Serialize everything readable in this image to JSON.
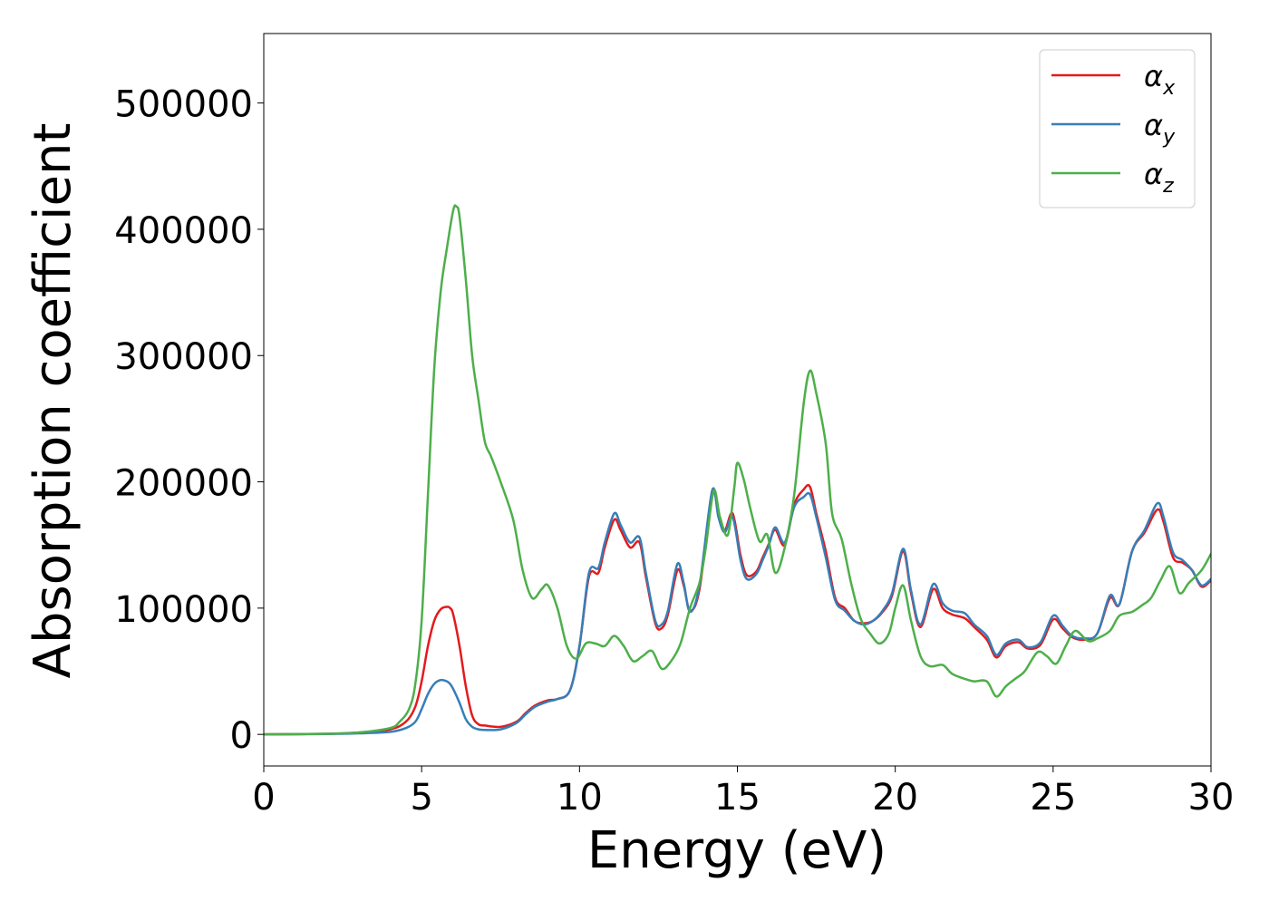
{
  "chart_data": {
    "type": "line",
    "title": "",
    "xlabel": "Energy (eV)",
    "ylabel": "Absorption coefficient",
    "xlim": [
      0,
      30
    ],
    "ylim": [
      -25000,
      555000
    ],
    "xticks": [
      0,
      5,
      10,
      15,
      20,
      25,
      30
    ],
    "xtick_labels": [
      "0",
      "5",
      "10",
      "15",
      "20",
      "25",
      "30"
    ],
    "yticks": [
      0,
      100000,
      200000,
      300000,
      400000,
      500000
    ],
    "ytick_labels": [
      "0",
      "100000",
      "200000",
      "300000",
      "400000",
      "500000"
    ],
    "grid": false,
    "legend_position": "top-right",
    "series": [
      {
        "name": "α_x",
        "legend": {
          "base": "α",
          "sub": "x"
        },
        "color": "#e41a1c",
        "x": [
          0,
          2,
          3,
          4,
          4.5,
          4.8,
          5.0,
          5.2,
          5.4,
          5.6,
          5.8,
          5.9,
          6.0,
          6.2,
          6.4,
          6.6,
          6.8,
          7.0,
          7.5,
          8.0,
          8.3,
          8.6,
          9.0,
          9.3,
          9.7,
          10.0,
          10.3,
          10.6,
          10.8,
          11.1,
          11.3,
          11.6,
          11.9,
          12.1,
          12.4,
          12.6,
          12.8,
          13.1,
          13.3,
          13.5,
          13.8,
          14.2,
          14.4,
          14.6,
          14.85,
          15.1,
          15.3,
          15.6,
          15.8,
          16.0,
          16.2,
          16.5,
          16.8,
          17.1,
          17.3,
          17.5,
          17.8,
          18.1,
          18.4,
          18.7,
          19.0,
          19.3,
          19.6,
          19.9,
          20.25,
          20.5,
          20.8,
          21.2,
          21.5,
          21.8,
          22.2,
          22.5,
          22.9,
          23.2,
          23.5,
          23.9,
          24.2,
          24.6,
          25.0,
          25.3,
          25.6,
          26.0,
          26.4,
          26.8,
          27.1,
          27.5,
          27.9,
          28.3,
          28.5,
          28.8,
          29.1,
          29.4,
          29.7,
          30.0
        ],
        "y": [
          0,
          500,
          1500,
          4000,
          10000,
          22000,
          42000,
          70000,
          90000,
          99000,
          101000,
          100000,
          95000,
          70000,
          38000,
          15000,
          8000,
          7000,
          6000,
          10000,
          17000,
          23000,
          27000,
          28000,
          35000,
          70000,
          125000,
          128000,
          148000,
          170000,
          162000,
          148000,
          152000,
          125000,
          88000,
          84000,
          95000,
          130000,
          118000,
          98000,
          115000,
          190000,
          175000,
          162000,
          175000,
          142000,
          126000,
          129000,
          140000,
          151000,
          162000,
          150000,
          182000,
          194000,
          196000,
          175000,
          145000,
          108000,
          100000,
          90000,
          88000,
          90000,
          97000,
          110000,
          145000,
          112000,
          85000,
          115000,
          100000,
          95000,
          92000,
          85000,
          75000,
          61000,
          70000,
          73000,
          68000,
          71000,
          91000,
          84000,
          77000,
          75000,
          80000,
          108000,
          103000,
          145000,
          160000,
          178000,
          168000,
          140000,
          136000,
          130000,
          117000,
          122000
        ]
      },
      {
        "name": "α_y",
        "legend": {
          "base": "α",
          "sub": "y"
        },
        "color": "#377eb8",
        "x": [
          0,
          2,
          3,
          4,
          4.5,
          4.8,
          5.0,
          5.2,
          5.4,
          5.6,
          5.8,
          5.9,
          6.0,
          6.2,
          6.4,
          6.6,
          6.8,
          7.0,
          7.5,
          8.0,
          8.3,
          8.6,
          9.0,
          9.3,
          9.7,
          10.0,
          10.3,
          10.6,
          10.8,
          11.1,
          11.3,
          11.6,
          11.9,
          12.1,
          12.4,
          12.6,
          12.8,
          13.1,
          13.3,
          13.5,
          13.8,
          14.2,
          14.4,
          14.6,
          14.85,
          15.1,
          15.3,
          15.6,
          15.8,
          16.0,
          16.2,
          16.5,
          16.8,
          17.1,
          17.3,
          17.5,
          17.8,
          18.1,
          18.4,
          18.7,
          19.0,
          19.3,
          19.6,
          19.9,
          20.25,
          20.5,
          20.8,
          21.2,
          21.5,
          21.8,
          22.2,
          22.5,
          22.9,
          23.2,
          23.5,
          23.9,
          24.2,
          24.6,
          25.0,
          25.3,
          25.6,
          26.0,
          26.4,
          26.8,
          27.1,
          27.5,
          27.9,
          28.3,
          28.5,
          28.8,
          29.1,
          29.4,
          29.7,
          30.0
        ],
        "y": [
          0,
          300,
          800,
          2000,
          5000,
          10000,
          20000,
          32000,
          40000,
          43000,
          42000,
          40000,
          36000,
          25000,
          12000,
          6000,
          4000,
          3500,
          4000,
          9000,
          16000,
          22000,
          26000,
          28000,
          35000,
          70000,
          128000,
          132000,
          152000,
          175000,
          166000,
          152000,
          156000,
          128000,
          90000,
          87000,
          98000,
          135000,
          120000,
          97000,
          118000,
          193000,
          172000,
          160000,
          172000,
          138000,
          123000,
          127000,
          138000,
          150000,
          164000,
          152000,
          180000,
          188000,
          190000,
          172000,
          140000,
          106000,
          98000,
          90000,
          87000,
          90000,
          98000,
          112000,
          147000,
          114000,
          87000,
          119000,
          104000,
          98000,
          96000,
          87000,
          78000,
          63000,
          72000,
          75000,
          69000,
          73000,
          94000,
          86000,
          78000,
          76000,
          80000,
          110000,
          103000,
          145000,
          162000,
          183000,
          172000,
          144000,
          138000,
          130000,
          118000,
          123000
        ]
      },
      {
        "name": "α_z",
        "legend": {
          "base": "α",
          "sub": "z"
        },
        "color": "#4daf4a",
        "x": [
          0,
          2,
          3,
          4,
          4.3,
          4.6,
          4.8,
          5.0,
          5.2,
          5.4,
          5.6,
          5.8,
          6.0,
          6.1,
          6.2,
          6.4,
          6.6,
          6.8,
          7.0,
          7.2,
          7.5,
          7.9,
          8.2,
          8.5,
          8.8,
          9.0,
          9.3,
          9.6,
          9.9,
          10.2,
          10.5,
          10.8,
          11.1,
          11.4,
          11.7,
          12.0,
          12.3,
          12.6,
          12.9,
          13.2,
          13.5,
          13.8,
          14.0,
          14.25,
          14.45,
          14.7,
          14.9,
          15.0,
          15.2,
          15.4,
          15.7,
          15.95,
          16.2,
          16.5,
          16.8,
          17.1,
          17.3,
          17.5,
          17.8,
          18.0,
          18.3,
          18.6,
          18.9,
          19.2,
          19.5,
          19.8,
          20.0,
          20.25,
          20.5,
          20.8,
          21.1,
          21.5,
          21.8,
          22.2,
          22.5,
          22.9,
          23.2,
          23.5,
          23.8,
          24.1,
          24.5,
          24.8,
          25.1,
          25.4,
          25.7,
          26.1,
          26.4,
          26.8,
          27.1,
          27.5,
          27.8,
          28.1,
          28.4,
          28.7,
          29.0,
          29.3,
          29.7,
          30.0
        ],
        "y": [
          0,
          500,
          1500,
          5000,
          10000,
          20000,
          40000,
          90000,
          190000,
          290000,
          350000,
          385000,
          415000,
          418000,
          410000,
          360000,
          300000,
          265000,
          232000,
          220000,
          200000,
          170000,
          130000,
          108000,
          115000,
          118000,
          100000,
          70000,
          60000,
          72000,
          72000,
          70000,
          78000,
          70000,
          58000,
          62000,
          66000,
          52000,
          58000,
          72000,
          100000,
          120000,
          148000,
          193000,
          172000,
          158000,
          195000,
          215000,
          202000,
          180000,
          153000,
          158000,
          128000,
          148000,
          190000,
          262000,
          288000,
          270000,
          230000,
          175000,
          155000,
          120000,
          92000,
          80000,
          72000,
          80000,
          100000,
          118000,
          90000,
          62000,
          54000,
          55000,
          48000,
          44000,
          42000,
          42000,
          30000,
          38000,
          44000,
          50000,
          65000,
          62000,
          56000,
          70000,
          82000,
          74000,
          76000,
          82000,
          94000,
          97000,
          102000,
          108000,
          122000,
          133000,
          112000,
          120000,
          130000,
          143000
        ]
      }
    ]
  }
}
